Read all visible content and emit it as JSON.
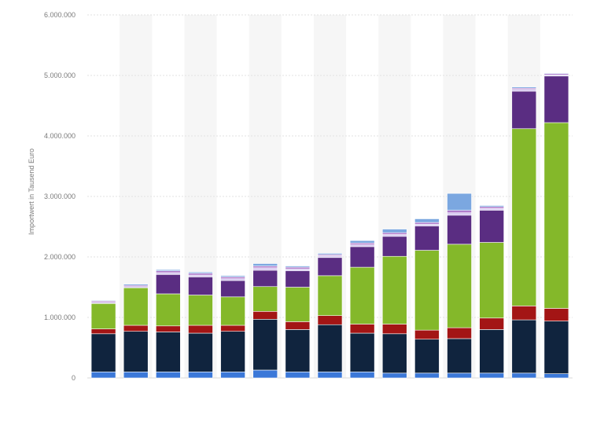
{
  "chart_data": {
    "type": "bar",
    "stacked": true,
    "title": "",
    "xlabel": "",
    "ylabel": "Importwert in Tausend Euro",
    "ylim": [
      0,
      6000000
    ],
    "yticks": [
      0,
      1000000,
      2000000,
      3000000,
      4000000,
      5000000,
      6000000
    ],
    "ytick_labels": [
      "0",
      "1.000.000",
      "2.000.000",
      "3.000.000",
      "4.000.000",
      "5.000.000",
      "6.000.000"
    ],
    "grid": true,
    "legend": "none",
    "categories": [
      "",
      "",
      "",
      "",
      "",
      "",
      "",
      "",
      "",
      "",
      "",
      "",
      "",
      "",
      ""
    ],
    "series": [
      {
        "color": "#3b78d8",
        "values": [
          100000,
          100000,
          100000,
          100000,
          100000,
          130000,
          100000,
          100000,
          100000,
          80000,
          80000,
          80000,
          80000,
          80000,
          70000
        ]
      },
      {
        "color": "#10243e",
        "values": [
          630000,
          670000,
          660000,
          640000,
          670000,
          840000,
          700000,
          780000,
          640000,
          650000,
          560000,
          570000,
          720000,
          880000,
          870000
        ]
      },
      {
        "color": "#a31515",
        "values": [
          80000,
          100000,
          100000,
          130000,
          100000,
          130000,
          130000,
          150000,
          150000,
          160000,
          150000,
          180000,
          190000,
          230000,
          210000
        ]
      },
      {
        "color": "#84b82a",
        "values": [
          420000,
          620000,
          530000,
          500000,
          470000,
          410000,
          570000,
          660000,
          940000,
          1120000,
          1320000,
          1380000,
          1250000,
          2930000,
          3070000
        ]
      },
      {
        "color": "#5a2d82",
        "values": [
          0,
          0,
          320000,
          300000,
          270000,
          270000,
          270000,
          300000,
          340000,
          330000,
          400000,
          480000,
          530000,
          620000,
          770000
        ]
      },
      {
        "color": "#d6c8f0",
        "values": [
          20000,
          20000,
          30000,
          30000,
          30000,
          40000,
          30000,
          30000,
          30000,
          30000,
          30000,
          40000,
          30000,
          30000,
          20000
        ]
      },
      {
        "color": "#b07ccc",
        "values": [
          20000,
          20000,
          30000,
          30000,
          30000,
          30000,
          30000,
          20000,
          30000,
          30000,
          30000,
          40000,
          30000,
          20000,
          20000
        ]
      },
      {
        "color": "#7ba7e0",
        "values": [
          10000,
          20000,
          20000,
          20000,
          20000,
          40000,
          20000,
          20000,
          40000,
          60000,
          60000,
          280000,
          20000,
          20000,
          10000
        ]
      }
    ]
  }
}
